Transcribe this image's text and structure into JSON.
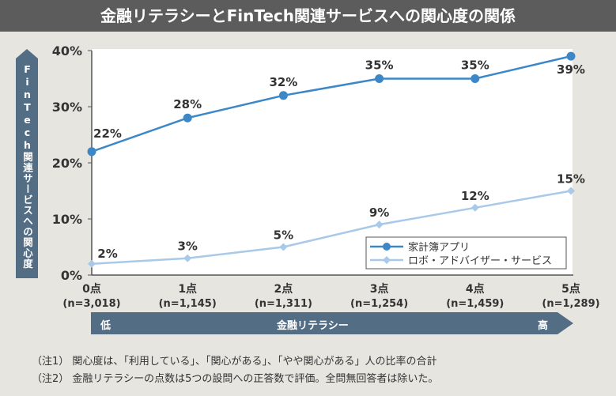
{
  "title": "金融リテラシーとFinTech関連サービスへの関心度の関係",
  "chart_data": {
    "type": "line",
    "title": "金融リテラシーとFinTech関連サービスへの関心度の関係",
    "ylabel": "FinTech関連サービスへの関心度",
    "xlabel": "金融リテラシー",
    "categories": [
      "0点",
      "1点",
      "2点",
      "3点",
      "4点",
      "5点"
    ],
    "category_sublabels": [
      "(n=3,018)",
      "(n=1,145)",
      "(n=1,311)",
      "(n=1,254)",
      "(n=1,459)",
      "(n=1,289)"
    ],
    "yticks": [
      "0%",
      "10%",
      "20%",
      "30%",
      "40%"
    ],
    "ylim": [
      0,
      40
    ],
    "grid": false,
    "legend": "bottom-right",
    "series": [
      {
        "name": "家計簿アプリ",
        "values": [
          22,
          28,
          32,
          35,
          35,
          39
        ],
        "labels": [
          "22%",
          "28%",
          "32%",
          "35%",
          "35%",
          "39%"
        ],
        "color": "#3c87c8",
        "marker": "circle"
      },
      {
        "name": "ロボ・アドバイザー・サービス",
        "values": [
          2,
          3,
          5,
          9,
          12,
          15
        ],
        "labels": [
          "2%",
          "3%",
          "5%",
          "9%",
          "12%",
          "15%"
        ],
        "color": "#a9c9e8",
        "marker": "diamond"
      }
    ]
  },
  "axis_band": {
    "low": "低",
    "label": "金融リテラシー",
    "high": "高"
  },
  "notes": [
    "（注1） 関心度は、「利用している」、「関心がある」、「やや関心がある」人の比率の合計",
    "（注2） 金融リテラシーの点数は5つの設問への正答数で評価。全問無回答者は除いた。"
  ]
}
